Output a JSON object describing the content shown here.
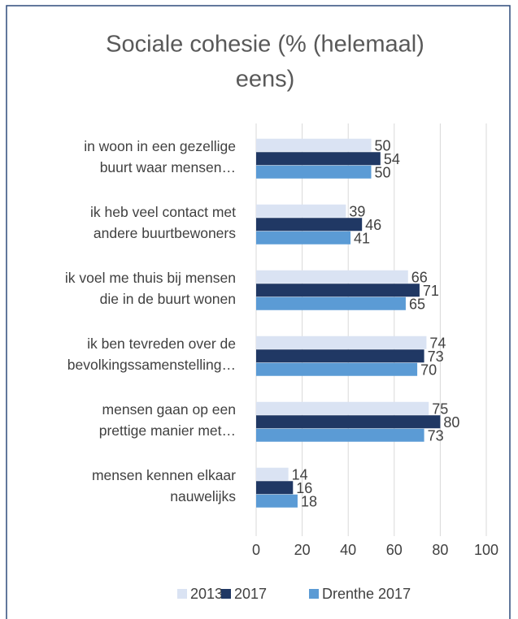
{
  "chart_data": {
    "type": "bar",
    "orientation": "horizontal",
    "title": [
      "Sociale cohesie (% (helemaal)",
      "eens)"
    ],
    "categories": [
      [
        "in woon in een gezellige",
        "buurt waar mensen…"
      ],
      [
        "ik heb veel contact met",
        "andere buurtbewoners"
      ],
      [
        "ik voel me thuis bij mensen",
        "die in de buurt wonen"
      ],
      [
        "ik ben tevreden over de",
        "bevolkingssamenstelling…"
      ],
      [
        "mensen gaan op een",
        "prettige manier met…"
      ],
      [
        "mensen kennen elkaar",
        "nauwelijks"
      ]
    ],
    "series": [
      {
        "name": "2013",
        "color": "#dae3f3",
        "values": [
          50,
          39,
          66,
          74,
          75,
          14
        ]
      },
      {
        "name": "2017",
        "color": "#203864",
        "values": [
          54,
          46,
          71,
          73,
          80,
          16
        ]
      },
      {
        "name": "Drenthe 2017",
        "color": "#5b9bd5",
        "values": [
          50,
          41,
          65,
          70,
          73,
          18
        ]
      }
    ],
    "xlim": [
      0,
      100
    ],
    "xticks": [
      0,
      20,
      40,
      60,
      80,
      100
    ],
    "grid": true,
    "legend": "bottom"
  }
}
